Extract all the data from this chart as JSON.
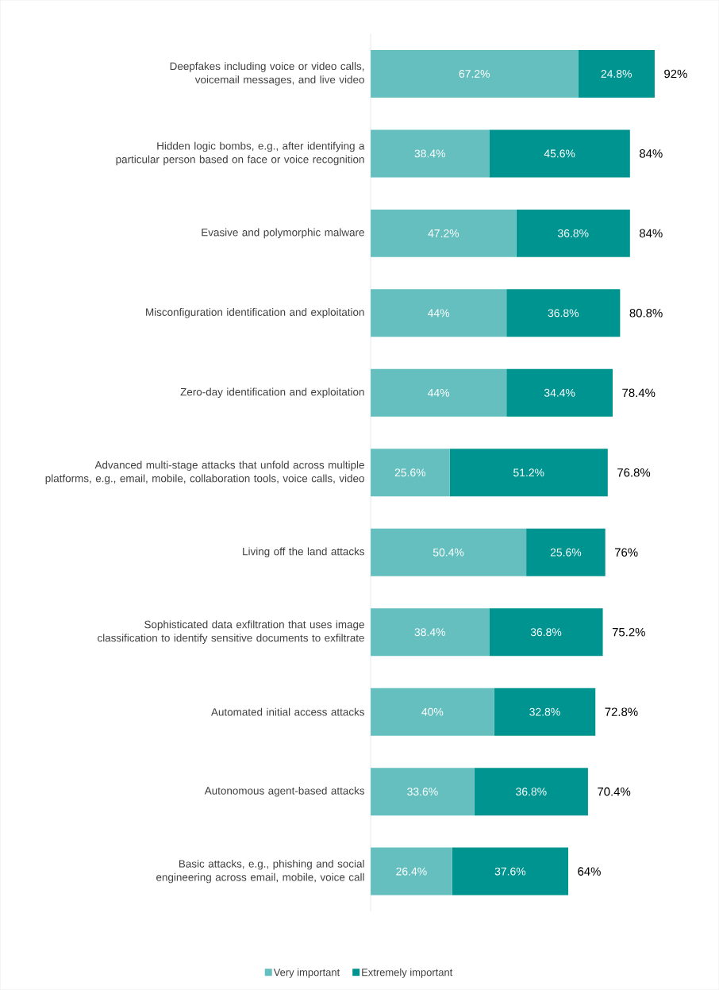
{
  "chart_data": {
    "type": "bar",
    "orientation": "horizontal",
    "stacked": true,
    "legend": "bottom",
    "categories": [
      "Deepfakes including voice or video calls, voicemail messages, and live video",
      "Hidden logic bombs, e.g., after identifying a particular person based on face or voice recognition",
      "Evasive and polymorphic malware",
      "Misconfiguration identification and exploitation",
      "Zero-day identification and exploitation",
      "Advanced multi-stage attacks that unfold across multiple platforms, e.g., email, mobile, collaboration tools, voice calls, video",
      "Living off the land attacks",
      "Sophisticated data exfiltration that uses image classification to identify sensitive documents to exfiltrate",
      "Automated initial access attacks",
      "Autonomous agent-based attacks",
      "Basic attacks, e.g., phishing and social engineering across email, mobile, voice call"
    ],
    "series": [
      {
        "name": "Very important",
        "color": "#66bfbf",
        "values": [
          67.2,
          38.4,
          47.2,
          44,
          44,
          25.6,
          50.4,
          38.4,
          40,
          33.6,
          26.4
        ],
        "value_labels": [
          "67.2%",
          "38.4%",
          "47.2%",
          "44%",
          "44%",
          "25.6%",
          "50.4%",
          "38.4%",
          "40%",
          "33.6%",
          "26.4%"
        ]
      },
      {
        "name": "Extremely important",
        "color": "#009490",
        "values": [
          24.8,
          45.6,
          36.8,
          36.8,
          34.4,
          51.2,
          25.6,
          36.8,
          32.8,
          36.8,
          37.6
        ],
        "value_labels": [
          "24.8%",
          "45.6%",
          "36.8%",
          "36.8%",
          "34.4%",
          "51.2%",
          "25.6%",
          "36.8%",
          "32.8%",
          "36.8%",
          "37.6%"
        ]
      }
    ],
    "totals": [
      "92%",
      "84%",
      "84%",
      "80.8%",
      "78.4%",
      "76.8%",
      "76%",
      "75.2%",
      "72.8%",
      "70.4%",
      "64%"
    ]
  }
}
